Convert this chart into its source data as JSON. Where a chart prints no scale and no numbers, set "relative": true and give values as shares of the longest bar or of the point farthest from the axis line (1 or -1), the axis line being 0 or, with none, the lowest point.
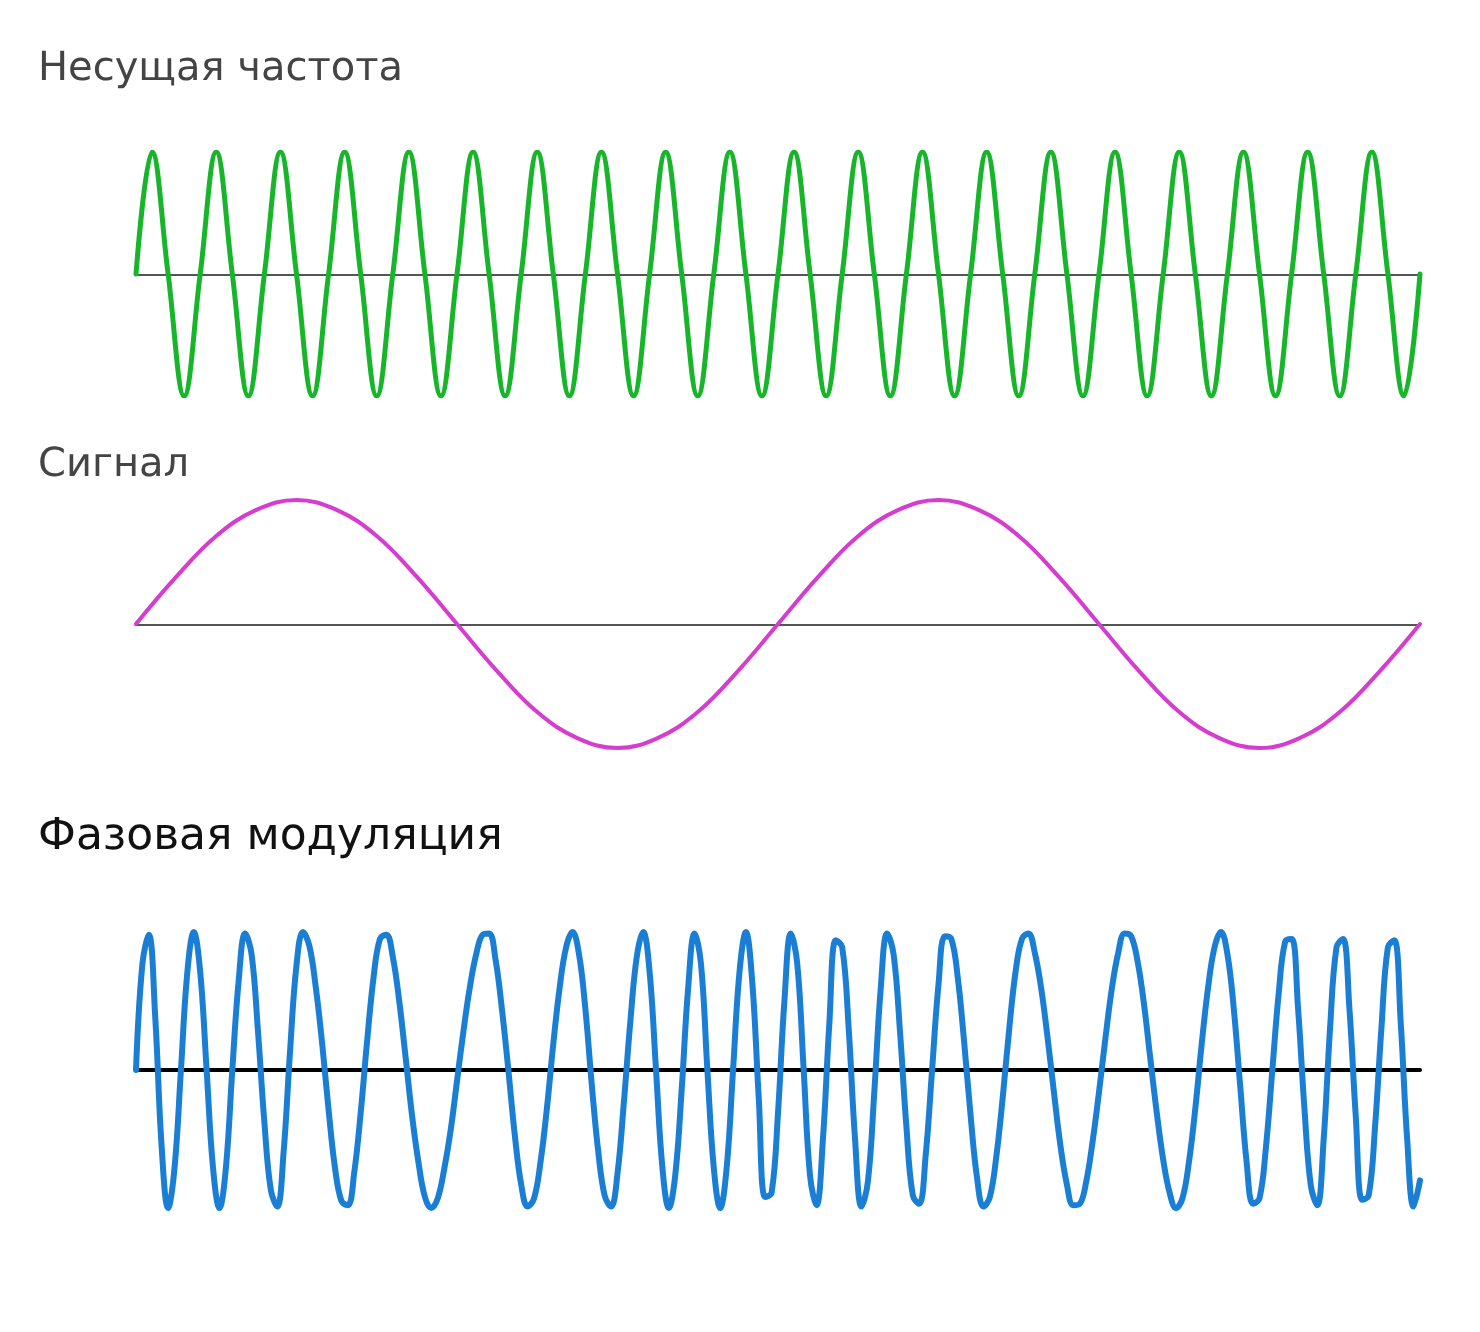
{
  "chart_data": [
    {
      "type": "line",
      "title": "Несущая частота",
      "relative": true,
      "marker": "none",
      "line_style": "solid",
      "color": "#17b52a",
      "categories": [
        null,
        null,
        null,
        null,
        null,
        null,
        null,
        null,
        null,
        null,
        null,
        null,
        null,
        null,
        null,
        null,
        null,
        null,
        null,
        null,
        null,
        null,
        null,
        null,
        null,
        null,
        null,
        null,
        null,
        null,
        null,
        null,
        null,
        null,
        null,
        null,
        null,
        null,
        null,
        null,
        null,
        null,
        null,
        null,
        null,
        null,
        null,
        null,
        null,
        null,
        null,
        null,
        null,
        null,
        null,
        null,
        null,
        null,
        null,
        null,
        null,
        null,
        null,
        null,
        null,
        null,
        null,
        null,
        null,
        null,
        null,
        null,
        null,
        null,
        null,
        null,
        null,
        null,
        null,
        null,
        null
      ],
      "values": [
        0,
        1,
        0,
        -1,
        0,
        1,
        0,
        -1,
        0,
        1,
        0,
        -1,
        0,
        1,
        0,
        -1,
        0,
        1,
        0,
        -1,
        0,
        1,
        0,
        -1,
        0,
        1,
        0,
        -1,
        0,
        1,
        0,
        -1,
        0,
        1,
        0,
        -1,
        0,
        1,
        0,
        -1,
        0,
        1,
        0,
        -1,
        0,
        1,
        0,
        -1,
        0,
        1,
        0,
        -1,
        0,
        1,
        0,
        -1,
        0,
        1,
        0,
        -1,
        0,
        1,
        0,
        -1,
        0,
        1,
        0,
        -1,
        0,
        1,
        0,
        -1,
        0,
        1,
        0,
        -1,
        0,
        1,
        0,
        -1,
        0
      ]
    },
    {
      "type": "line",
      "title": "Сигнал",
      "relative": true,
      "marker": "none",
      "line_style": "solid",
      "color": "#d53ccf",
      "categories": [
        null,
        null,
        null,
        null,
        null,
        null,
        null,
        null,
        null,
        null,
        null,
        null,
        null,
        null,
        null,
        null,
        null,
        null,
        null,
        null,
        null,
        null,
        null,
        null,
        null,
        null,
        null,
        null,
        null,
        null,
        null,
        null,
        null
      ],
      "values": [
        0,
        0.38,
        0.71,
        0.92,
        1,
        0.92,
        0.71,
        0.38,
        0,
        -0.38,
        -0.71,
        -0.92,
        -1,
        -0.92,
        -0.71,
        -0.38,
        0,
        0.38,
        0.71,
        0.92,
        1,
        0.92,
        0.71,
        0.38,
        0,
        -0.38,
        -0.71,
        -0.92,
        -1,
        -0.92,
        -0.71,
        -0.38,
        0
      ]
    },
    {
      "type": "line",
      "title": "Фазовая модуляция",
      "relative": true,
      "marker": "none",
      "line_style": "solid",
      "color": "#1a7fd4",
      "categories": [
        null,
        null,
        null,
        null,
        null,
        null,
        null,
        null,
        null,
        null,
        null,
        null,
        null,
        null,
        null,
        null,
        null,
        null,
        null,
        null,
        null,
        null,
        null,
        null,
        null,
        null,
        null,
        null,
        null,
        null,
        null,
        null,
        null,
        null,
        null,
        null,
        null,
        null,
        null,
        null,
        null,
        null,
        null,
        null,
        null,
        null,
        null,
        null,
        null,
        null,
        null,
        null,
        null,
        null,
        null,
        null,
        null,
        null,
        null,
        null,
        null,
        null,
        null,
        null,
        null,
        null,
        null,
        null,
        null,
        null,
        null,
        null,
        null,
        null,
        null,
        null,
        null,
        null,
        null,
        null,
        null,
        null,
        null,
        null,
        null,
        null,
        null,
        null,
        null,
        null,
        null,
        null,
        null,
        null,
        null,
        null,
        null,
        null,
        null,
        null,
        null,
        null,
        null,
        null,
        null,
        null,
        null,
        null,
        null,
        null,
        null,
        null,
        null,
        null,
        null,
        null,
        null,
        null,
        null,
        null,
        null,
        null,
        null,
        null,
        null,
        null,
        null,
        null,
        null,
        null,
        null,
        null,
        null,
        null,
        null,
        null,
        null,
        null,
        null,
        null,
        null,
        null,
        null,
        null,
        null,
        null,
        null,
        null,
        null,
        null,
        null,
        null,
        null,
        null,
        null,
        null,
        null,
        null,
        null,
        null,
        null,
        null,
        null,
        null,
        null,
        null,
        null,
        null,
        null,
        null,
        null,
        null,
        null,
        null,
        null,
        null,
        null,
        null,
        null,
        null,
        null,
        null,
        null,
        null,
        null,
        null,
        null,
        null,
        null,
        null,
        null,
        null,
        null,
        null,
        null,
        null,
        null,
        null,
        null,
        null,
        null
      ],
      "values": [
        0,
        0.77,
        0.98,
        0.38,
        -0.56,
        -1,
        -0.71,
        0,
        0.71,
        1,
        0.71,
        0,
        -0.71,
        -1,
        -0.71,
        0,
        0.65,
        0.99,
        0.84,
        0.28,
        -0.38,
        -0.87,
        -0.99,
        -0.59,
        0.14,
        0.76,
        1,
        0.9,
        0.6,
        0.19,
        -0.29,
        -0.71,
        -0.95,
        -0.98,
        -0.74,
        -0.31,
        0.21,
        0.67,
        0.95,
        0.98,
        0.82,
        0.5,
        0.09,
        -0.33,
        -0.67,
        -0.92,
        -1,
        -0.93,
        -0.72,
        -0.44,
        -0.08,
        0.28,
        0.6,
        0.84,
        0.98,
        0.99,
        0.8,
        0.44,
        0,
        -0.47,
        -0.83,
        -0.99,
        -0.93,
        -0.67,
        -0.28,
        0.19,
        0.6,
        0.89,
        1,
        0.84,
        0.44,
        -0.11,
        -0.59,
        -0.91,
        -0.99,
        -0.75,
        -0.23,
        0.35,
        0.82,
        1,
        0.71,
        0,
        -0.71,
        -1,
        -0.76,
        -0.14,
        0.59,
        0.99,
        0.77,
        0,
        -0.71,
        -1,
        -0.71,
        0,
        0.71,
        1,
        0.63,
        -0.2,
        -0.92,
        -0.89,
        -0.31,
        0.5,
        0.99,
        0.77,
        0,
        -0.77,
        -0.98,
        -0.5,
        0.34,
        0.94,
        0.89,
        0.31,
        -0.5,
        -0.99,
        -0.81,
        -0.16,
        0.59,
        0.99,
        0.84,
        0.28,
        -0.41,
        -0.91,
        -0.97,
        -0.62,
        0,
        0.62,
        0.97,
        0.95,
        0.67,
        0.2,
        -0.33,
        -0.78,
        -0.99,
        -0.92,
        -0.63,
        -0.2,
        0.29,
        0.71,
        0.95,
        0.99,
        0.85,
        0.59,
        0.23,
        -0.17,
        -0.55,
        -0.83,
        -0.98,
        -0.97,
        -0.81,
        -0.52,
        -0.16,
        0.23,
        0.59,
        0.85,
        0.99,
        0.97,
        0.79,
        0.48,
        0.08,
        -0.31,
        -0.65,
        -0.89,
        -1,
        -0.93,
        -0.67,
        -0.28,
        0.19,
        0.6,
        0.89,
        1,
        0.84,
        0.44,
        -0.12,
        -0.67,
        -0.97,
        -0.93,
        -0.56,
        0,
        0.56,
        0.93,
        0.95,
        0.45,
        -0.28,
        -0.84,
        -0.98,
        -0.5,
        0.31,
        0.89,
        0.95,
        0.45,
        -0.34,
        -0.94,
        -0.91,
        -0.41,
        0.31,
        0.89,
        0.94,
        0.34,
        -0.5,
        -0.99,
        -0.8
      ]
    }
  ]
}
